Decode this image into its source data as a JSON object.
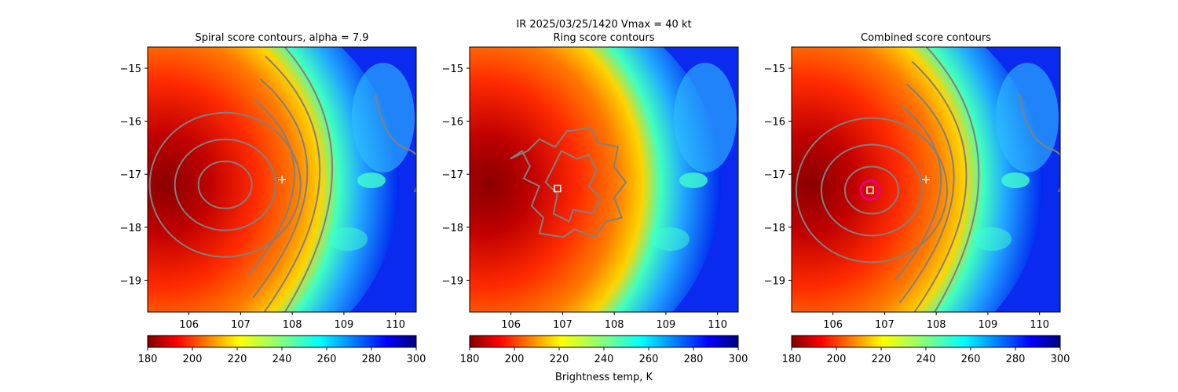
{
  "suptitle": "IR  2025/03/25/1420    Vmax = 40 kt",
  "colorbar_label": "Brightness temp, K",
  "colors": {
    "contour": "#808080",
    "cross": "#ffffff",
    "ring": "#e6007e",
    "marker": "#ffffff"
  },
  "chart_data": [
    {
      "type": "heatmap",
      "title": "Spiral score contours, alpha =  7.9",
      "xlim": [
        105.2,
        110.4
      ],
      "ylim": [
        -19.6,
        -14.6
      ],
      "xticks": [
        "106",
        "107",
        "108",
        "109",
        "110"
      ],
      "yticks": [
        "−15",
        "−16",
        "−17",
        "−18",
        "−19"
      ],
      "colorbar": {
        "range": [
          180,
          300
        ],
        "ticks": [
          "180",
          "200",
          "220",
          "240",
          "260",
          "280",
          "300"
        ],
        "colormap": "jet_r"
      },
      "center_marker": {
        "shape": "cross",
        "lon": 107.8,
        "lat": -17.1
      }
    },
    {
      "type": "heatmap",
      "title": "Ring score contours",
      "xlim": [
        105.2,
        110.4
      ],
      "ylim": [
        -19.6,
        -14.6
      ],
      "xticks": [
        "106",
        "107",
        "108",
        "109",
        "110"
      ],
      "yticks": [
        "−15",
        "−16",
        "−17",
        "−18",
        "−19"
      ],
      "colorbar": {
        "range": [
          180,
          300
        ],
        "ticks": [
          "180",
          "200",
          "220",
          "240",
          "260",
          "280",
          "300"
        ],
        "colormap": "jet_r"
      },
      "center_marker": {
        "shape": "square",
        "lon": 106.9,
        "lat": -17.27
      }
    },
    {
      "type": "heatmap",
      "title": "Combined score contours",
      "xlim": [
        105.2,
        110.4
      ],
      "ylim": [
        -19.6,
        -14.6
      ],
      "xticks": [
        "106",
        "107",
        "108",
        "109",
        "110"
      ],
      "yticks": [
        "−15",
        "−16",
        "−17",
        "−18",
        "−19"
      ],
      "colorbar": {
        "range": [
          180,
          300
        ],
        "ticks": [
          "180",
          "200",
          "220",
          "240",
          "260",
          "280",
          "300"
        ],
        "colormap": "jet_r"
      },
      "center_marker": {
        "shape": "square",
        "lon": 106.72,
        "lat": -17.3
      },
      "cross_marker": {
        "lon": 107.8,
        "lat": -17.1
      }
    }
  ]
}
